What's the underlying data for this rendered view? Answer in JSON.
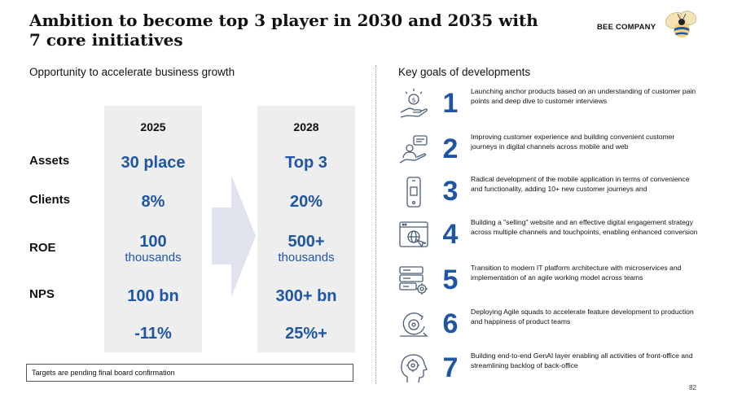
{
  "title": "Ambition to become top 3 player in 2030 and 2035 with 7 core initiatives",
  "brand": "BEE COMPANY",
  "left": {
    "heading": "Opportunity to accelerate business growth",
    "years": [
      "2025",
      "2028"
    ],
    "rows": [
      {
        "label": "Assets",
        "v2025": "30 place",
        "v2028": "Top 3"
      },
      {
        "label": "Clients",
        "v2025": "8%",
        "v2028": "20%"
      },
      {
        "label": "ROE",
        "v2025": "100",
        "v2025_sub": "thousands",
        "v2028": "500+",
        "v2028_sub": "thousands"
      },
      {
        "label": "NPS",
        "v2025": "100 bn",
        "v2028": "300+ bn"
      },
      {
        "label": "",
        "v2025": "-11%",
        "v2028": "25%+"
      }
    ],
    "note": "Targets are pending final board confirmation"
  },
  "right": {
    "heading": "Key goals of developments",
    "goals": [
      {
        "num": "1",
        "icon": "hand-money-icon",
        "text": "Launching anchor products based on an understanding of customer pain points and deep dive to customer interviews"
      },
      {
        "num": "2",
        "icon": "customer-chat-icon",
        "text": "Improving customer experience and building convenient customer journeys in digital channels across mobile and web"
      },
      {
        "num": "3",
        "icon": "mobile-phone-icon",
        "text": "Radical development of the mobile application in terms of convenience and functionality, adding 10+ new customer journeys and"
      },
      {
        "num": "4",
        "icon": "website-globe-icon",
        "text": "Building a \"selling\" website and an effective digital engagement strategy across multiple channels and touchpoints, enabling enhanced conversion"
      },
      {
        "num": "5",
        "icon": "server-gear-icon",
        "text": "Transition to modern IT platform architecture with microservices and implementation of an agile working model across teams"
      },
      {
        "num": "6",
        "icon": "agile-cycle-icon",
        "text": "Deploying Agile squads to accelerate feature development to production and happiness of product teams"
      },
      {
        "num": "7",
        "icon": "ai-head-icon",
        "text": "Building end-to-end GenAI layer enabling all activities of front-office and streamlining backlog of back-office"
      }
    ]
  },
  "page_number": "82"
}
